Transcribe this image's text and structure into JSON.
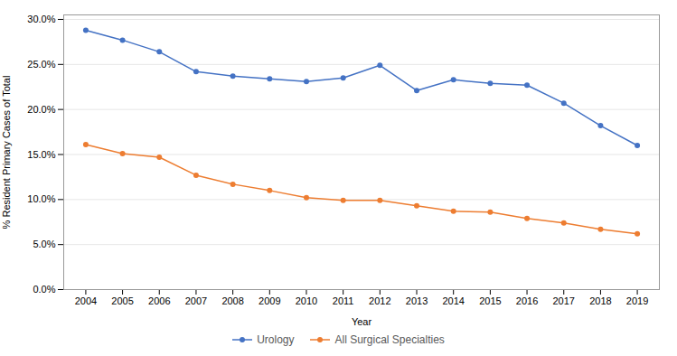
{
  "chart_data": {
    "type": "line",
    "x": [
      2004,
      2005,
      2006,
      2007,
      2008,
      2009,
      2010,
      2011,
      2012,
      2013,
      2014,
      2015,
      2016,
      2017,
      2018,
      2019
    ],
    "series": [
      {
        "name": "Urology",
        "color": "#4472C4",
        "values": [
          0.288,
          0.277,
          0.264,
          0.242,
          0.237,
          0.234,
          0.231,
          0.235,
          0.249,
          0.221,
          0.233,
          0.229,
          0.227,
          0.207,
          0.182,
          0.16
        ]
      },
      {
        "name": "All Surgical Specialties",
        "color": "#ED7D31",
        "values": [
          0.161,
          0.151,
          0.147,
          0.127,
          0.117,
          0.11,
          0.102,
          0.099,
          0.099,
          0.093,
          0.087,
          0.086,
          0.079,
          0.074,
          0.067,
          0.062
        ]
      }
    ],
    "marker": "circle",
    "xlabel": "Year",
    "ylabel": "% Resident Primary Cases of Total",
    "xlim": [
      2003.4,
      2019.6
    ],
    "xticks": [
      2004,
      2005,
      2006,
      2007,
      2008,
      2009,
      2010,
      2011,
      2012,
      2013,
      2014,
      2015,
      2016,
      2017,
      2018,
      2019
    ],
    "ylim": [
      0.0,
      0.305
    ],
    "yticks": [
      {
        "value": 0.0,
        "label": "0.0%"
      },
      {
        "value": 0.05,
        "label": "5.0%"
      },
      {
        "value": 0.1,
        "label": "10.0%"
      },
      {
        "value": 0.15,
        "label": "15.0%"
      },
      {
        "value": 0.2,
        "label": "20.0%"
      },
      {
        "value": 0.25,
        "label": "25.0%"
      },
      {
        "value": 0.3,
        "label": "30.0%"
      }
    ],
    "grid": true,
    "legend": "bottom"
  }
}
